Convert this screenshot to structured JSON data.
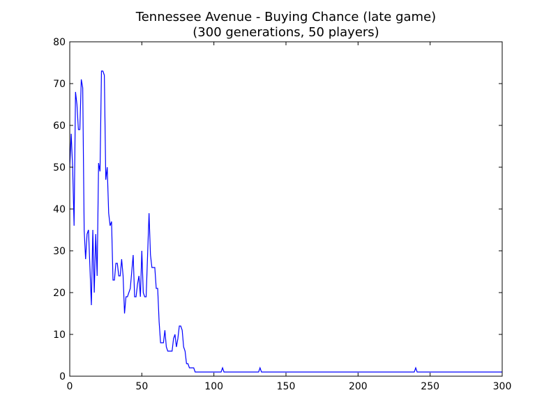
{
  "chart_data": {
    "type": "line",
    "title": "Tennessee Avenue - Buying Chance (late game)",
    "subtitle": "(300 generations, 50 players)",
    "xlabel": "",
    "ylabel": "",
    "xlim": [
      0,
      300
    ],
    "ylim": [
      0,
      80
    ],
    "x_ticks": [
      0,
      50,
      100,
      150,
      200,
      250,
      300
    ],
    "y_ticks": [
      0,
      10,
      20,
      30,
      40,
      50,
      60,
      70,
      80
    ],
    "grid": false,
    "series": [
      {
        "color": "#0000ff",
        "x": [
          0,
          1,
          2,
          3,
          4,
          5,
          6,
          7,
          8,
          9,
          10,
          11,
          12,
          13,
          14,
          15,
          16,
          17,
          18,
          19,
          20,
          21,
          22,
          23,
          24,
          25,
          26,
          27,
          28,
          29,
          30,
          31,
          32,
          33,
          34,
          35,
          36,
          37,
          38,
          39,
          40,
          41,
          42,
          43,
          44,
          45,
          46,
          47,
          48,
          49,
          50,
          51,
          52,
          53,
          54,
          55,
          56,
          57,
          58,
          59,
          60,
          61,
          62,
          63,
          64,
          65,
          66,
          67,
          68,
          69,
          70,
          71,
          72,
          73,
          74,
          75,
          76,
          77,
          78,
          79,
          80,
          81,
          82,
          83,
          84,
          85,
          86,
          87,
          90,
          100,
          104,
          105,
          106,
          107,
          110,
          120,
          130,
          131,
          132,
          133,
          140,
          160,
          180,
          200,
          220,
          238,
          239,
          240,
          241,
          250,
          270,
          290,
          300
        ],
        "y": [
          50,
          58,
          50,
          36,
          68,
          65,
          59,
          59,
          71,
          69,
          35,
          28,
          34,
          35,
          26,
          17,
          35,
          20,
          34,
          24,
          51,
          49,
          73,
          73,
          72,
          47,
          50,
          39,
          36,
          37,
          23,
          23,
          27,
          27,
          24,
          24,
          28,
          24,
          15,
          19,
          19,
          20,
          21,
          25,
          29,
          19,
          19,
          22,
          24,
          19,
          30,
          20,
          19,
          19,
          29,
          39,
          29,
          26,
          26,
          26,
          21,
          21,
          13,
          8,
          8,
          8,
          11,
          7,
          6,
          6,
          6,
          6,
          9,
          10,
          7,
          9,
          12,
          12,
          11,
          7,
          6,
          3,
          3,
          2,
          2,
          2,
          2,
          1,
          1,
          1,
          1,
          1,
          2,
          1,
          1,
          1,
          1,
          1,
          2,
          1,
          1,
          1,
          1,
          1,
          1,
          1,
          1,
          2,
          1,
          1,
          1,
          1,
          1
        ]
      }
    ]
  }
}
